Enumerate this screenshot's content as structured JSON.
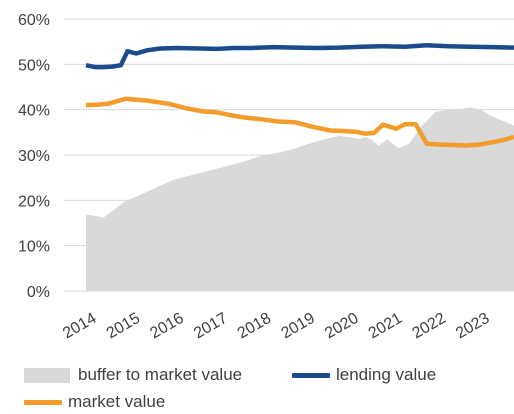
{
  "chart_data": {
    "type": "line",
    "title": "",
    "xlabel": "",
    "ylabel": "",
    "ylim": [
      0,
      60
    ],
    "yticks": [
      "0%",
      "10%",
      "20%",
      "30%",
      "40%",
      "50%",
      "60%"
    ],
    "ytick_values": [
      0,
      10,
      20,
      30,
      40,
      50,
      60
    ],
    "xlim": [
      2014,
      2024
    ],
    "xticks": [
      "2014",
      "2015",
      "2016",
      "2017",
      "2018",
      "2019",
      "2020",
      "2021",
      "2022",
      "2023"
    ],
    "grid": "horizontal",
    "legend_position": "bottom",
    "series": [
      {
        "name": "buffer to market value",
        "kind": "area",
        "color": "#d9d9d9",
        "x": [
          2014.2,
          2014.4,
          2014.6,
          2014.85,
          2015.1,
          2015.4,
          2015.8,
          2016.2,
          2016.6,
          2017.0,
          2017.4,
          2017.8,
          2018.2,
          2018.6,
          2019.0,
          2019.3,
          2019.6,
          2019.8,
          2020.0,
          2020.2,
          2020.45,
          2020.6,
          2020.75,
          2020.9,
          2021.1,
          2021.35,
          2021.6,
          2021.85,
          2022.2,
          2022.5,
          2022.8,
          2023.0,
          2023.25,
          2023.5,
          2023.75,
          2024.0
        ],
        "values": [
          16.8,
          16.6,
          16.2,
          18.0,
          19.8,
          21.0,
          22.8,
          24.5,
          25.5,
          26.5,
          27.5,
          28.5,
          29.8,
          30.5,
          31.5,
          32.5,
          33.3,
          33.8,
          34.2,
          34.0,
          33.5,
          34.0,
          33.3,
          32.0,
          33.5,
          31.5,
          32.5,
          36.0,
          39.5,
          40.0,
          40.2,
          40.5,
          40.0,
          38.5,
          37.5,
          36.5
        ]
      },
      {
        "name": "lending value",
        "kind": "line",
        "color": "#1a4b8c",
        "x": [
          2014.2,
          2014.4,
          2014.6,
          2014.8,
          2015.0,
          2015.15,
          2015.35,
          2015.6,
          2015.9,
          2016.3,
          2016.8,
          2017.2,
          2017.6,
          2018.0,
          2018.5,
          2019.0,
          2019.5,
          2020.0,
          2020.5,
          2021.0,
          2021.5,
          2022.0,
          2022.5,
          2023.0,
          2023.5,
          2024.0
        ],
        "values": [
          49.8,
          49.4,
          49.4,
          49.5,
          49.8,
          52.9,
          52.4,
          53.1,
          53.5,
          53.6,
          53.5,
          53.4,
          53.6,
          53.6,
          53.8,
          53.7,
          53.6,
          53.7,
          53.9,
          54.0,
          53.9,
          54.2,
          54.0,
          53.9,
          53.8,
          53.7
        ]
      },
      {
        "name": "market value",
        "kind": "line",
        "color": "#f39c2b",
        "x": [
          2014.2,
          2014.45,
          2014.7,
          2015.1,
          2015.6,
          2016.1,
          2016.5,
          2016.9,
          2017.2,
          2017.5,
          2017.8,
          2018.2,
          2018.6,
          2019.0,
          2019.4,
          2019.8,
          2020.1,
          2020.4,
          2020.6,
          2020.8,
          2021.0,
          2021.3,
          2021.5,
          2021.75,
          2022.0,
          2022.3,
          2022.6,
          2022.9,
          2023.2,
          2023.5,
          2023.75,
          2024.0
        ],
        "values": [
          41.0,
          41.1,
          41.3,
          42.4,
          42.0,
          41.3,
          40.3,
          39.6,
          39.4,
          38.8,
          38.3,
          37.9,
          37.4,
          37.2,
          36.2,
          35.4,
          35.3,
          35.1,
          34.7,
          34.9,
          36.7,
          35.8,
          36.8,
          36.8,
          32.5,
          32.3,
          32.2,
          32.1,
          32.3,
          32.8,
          33.3,
          34.0
        ]
      }
    ]
  },
  "legend": {
    "items": [
      {
        "label": "buffer to market value",
        "color": "#d9d9d9",
        "kind": "area"
      },
      {
        "label": "lending value",
        "color": "#1a4b8c",
        "kind": "line"
      },
      {
        "label": "market value",
        "color": "#f39c2b",
        "kind": "line"
      }
    ]
  }
}
